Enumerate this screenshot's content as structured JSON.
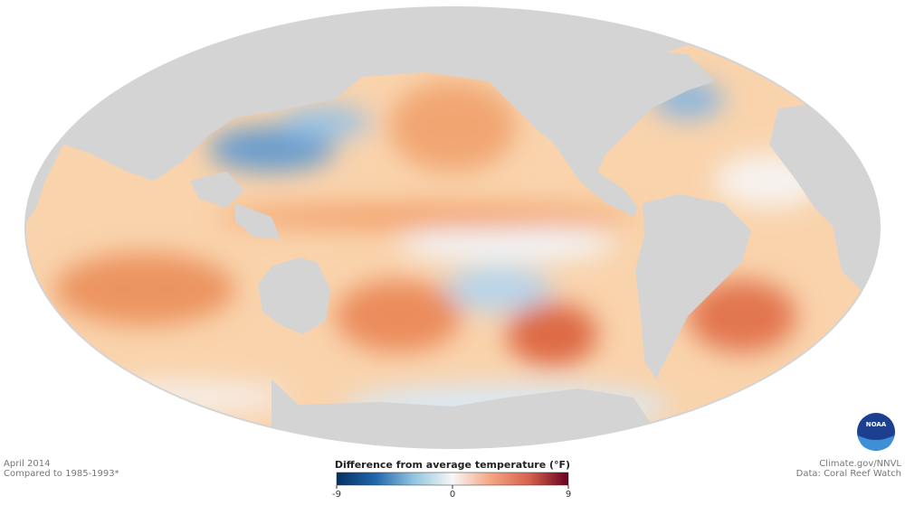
{
  "map": {
    "title": "April 2014",
    "subtitle": "Compared to 1985-1993*"
  },
  "credits": {
    "source": "Climate.gov/NNVL",
    "data": "Data: Coral Reef Watch",
    "logo": "NOAA"
  },
  "legend": {
    "title": "Difference from average temperature (°F)",
    "range": [
      -9,
      9
    ],
    "ticks": [
      -9,
      0,
      9
    ],
    "colors": [
      "#053061",
      "#2166ac",
      "#92c5de",
      "#f7f7f7",
      "#f4a582",
      "#d6604d",
      "#67001f"
    ]
  }
}
